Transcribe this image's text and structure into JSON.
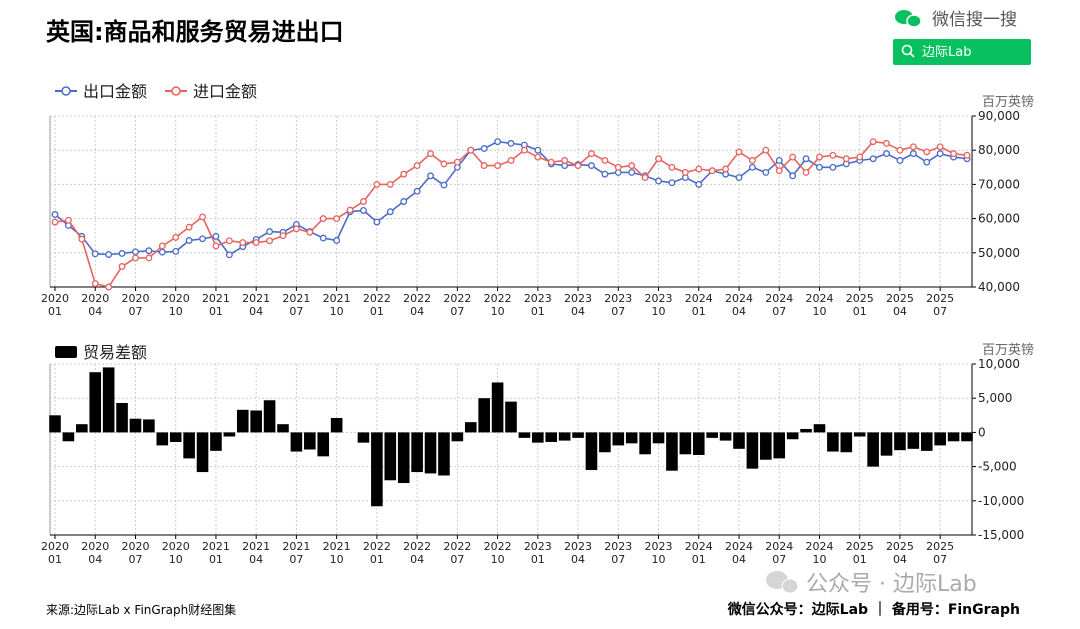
{
  "header": {
    "title": "英国:商品和服务贸易进出口",
    "search_hint": "微信搜一搜",
    "search_button": "边际Lab"
  },
  "chart_data": [
    {
      "type": "line",
      "y_label": "百万英镑",
      "grid": true,
      "categories": [
        "2020\n01",
        null,
        null,
        "2020\n04",
        null,
        null,
        "2020\n07",
        null,
        null,
        "2020\n10",
        null,
        null,
        "2021\n01",
        null,
        null,
        "2021\n04",
        null,
        null,
        "2021\n07",
        null,
        null,
        "2021\n10",
        null,
        null,
        "2022\n01",
        null,
        null,
        "2022\n04",
        null,
        null,
        "2022\n07",
        null,
        null,
        "2022\n10",
        null,
        null,
        "2023\n01",
        null,
        null,
        "2023\n04",
        null,
        null,
        "2023\n07",
        null,
        null,
        "2023\n10",
        null,
        null,
        "2024\n01",
        null,
        null,
        "2024\n04",
        null,
        null,
        "2024\n07",
        null,
        null,
        "2024\n10",
        null,
        null,
        "2025\n01",
        null,
        null,
        "2025\n04",
        null,
        null,
        "2025\n07",
        null,
        null
      ],
      "series": [
        {
          "name": "出口金额",
          "color": "#4a6bc8",
          "values": [
            61200,
            58000,
            54800,
            49700,
            49500,
            49800,
            50300,
            50600,
            50200,
            50400,
            53600,
            54100,
            54800,
            49400,
            51800,
            53900,
            56200,
            56000,
            58300,
            56200,
            54300,
            53600,
            62000,
            62400,
            59000,
            62000,
            65000,
            68000,
            72500,
            69800,
            75000,
            80000,
            80500,
            82500,
            82000,
            81500,
            80000,
            76000,
            75500,
            75800,
            75500,
            73000,
            73500,
            73500,
            72500,
            71000,
            70500,
            72000,
            70000,
            74000,
            73000,
            72000,
            75000,
            73500,
            77000,
            72500,
            77500,
            75000,
            75000,
            76000,
            77000,
            77500,
            79000,
            77000,
            79000,
            76500,
            79000,
            78000,
            77500
          ]
        },
        {
          "name": "进口金额",
          "color": "#e8625e",
          "values": [
            59000,
            59500,
            54000,
            41000,
            40000,
            46000,
            48500,
            48500,
            52000,
            54500,
            57500,
            60500,
            52000,
            53500,
            53000,
            53000,
            53500,
            55000,
            57000,
            56000,
            60000,
            60000,
            62500,
            65000,
            70000,
            70000,
            73000,
            75500,
            79000,
            76000,
            76500,
            80000,
            75500,
            75500,
            77000,
            80000,
            78000,
            76500,
            77000,
            75500,
            79000,
            77000,
            75000,
            75500,
            72000,
            77500,
            75000,
            73500,
            74500,
            74000,
            74500,
            79500,
            77000,
            80000,
            74000,
            78000,
            73500,
            78000,
            78500,
            77500,
            78000,
            82500,
            82000,
            80000,
            81000,
            79500,
            81000,
            79000,
            78500
          ]
        }
      ],
      "ylim": [
        40000,
        90000
      ],
      "yticks": [
        {
          "value": 40000,
          "label": "40,000"
        },
        {
          "value": 50000,
          "label": "50,000"
        },
        {
          "value": 60000,
          "label": "60,000"
        },
        {
          "value": 70000,
          "label": "70,000"
        },
        {
          "value": 80000,
          "label": "80,000"
        },
        {
          "value": 90000,
          "label": "90,000"
        }
      ]
    },
    {
      "type": "bar",
      "y_label": "百万英镑",
      "grid": true,
      "categories": [
        "2020\n01",
        null,
        null,
        "2020\n04",
        null,
        null,
        "2020\n07",
        null,
        null,
        "2020\n10",
        null,
        null,
        "2021\n01",
        null,
        null,
        "2021\n04",
        null,
        null,
        "2021\n07",
        null,
        null,
        "2021\n10",
        null,
        null,
        "2022\n01",
        null,
        null,
        "2022\n04",
        null,
        null,
        "2022\n07",
        null,
        null,
        "2022\n10",
        null,
        null,
        "2023\n01",
        null,
        null,
        "2023\n04",
        null,
        null,
        "2023\n07",
        null,
        null,
        "2023\n10",
        null,
        null,
        "2024\n01",
        null,
        null,
        "2024\n04",
        null,
        null,
        "2024\n07",
        null,
        null,
        "2024\n10",
        null,
        null,
        "2025\n01",
        null,
        null,
        "2025\n04",
        null,
        null,
        "2025\n07",
        null,
        null
      ],
      "series": [
        {
          "name": "贸易差额",
          "color": "#000000",
          "values": [
            2500,
            -1300,
            1200,
            8800,
            9500,
            4300,
            2000,
            1900,
            -1900,
            -1400,
            -3800,
            -5800,
            -2700,
            -600,
            3300,
            3200,
            4700,
            1200,
            -2800,
            -2500,
            -3500,
            2100,
            0,
            -1500,
            -10800,
            -7000,
            -7400,
            -5800,
            -6000,
            -6300,
            -1300,
            1500,
            5000,
            7300,
            4500,
            -800,
            -1500,
            -1400,
            -1200,
            -800,
            -5500,
            -2900,
            -1900,
            -1600,
            -3200,
            -1600,
            -5600,
            -3200,
            -3300,
            -800,
            -1200,
            -2400,
            -5300,
            -4000,
            -3800,
            -1000,
            500,
            1200,
            -2800,
            -2900,
            -600,
            -5000,
            -3400,
            -2600,
            -2400,
            -2700,
            -1900,
            -1300,
            -1300
          ]
        }
      ],
      "ylim": [
        -15000,
        10000
      ],
      "yticks": [
        {
          "value": -15000,
          "label": "-15,000"
        },
        {
          "value": -10000,
          "label": "-10,000"
        },
        {
          "value": -5000,
          "label": "-5,000"
        },
        0,
        {
          "value": 5000,
          "label": "5,000"
        },
        {
          "value": 10000,
          "label": "10,000"
        }
      ]
    }
  ],
  "footer": {
    "source": "来源:边际Lab x FinGraph财经图集",
    "credit": "微信公众号：边际Lab ｜ 备用号：FinGraph",
    "watermark": "公众号 · 边际Lab"
  }
}
